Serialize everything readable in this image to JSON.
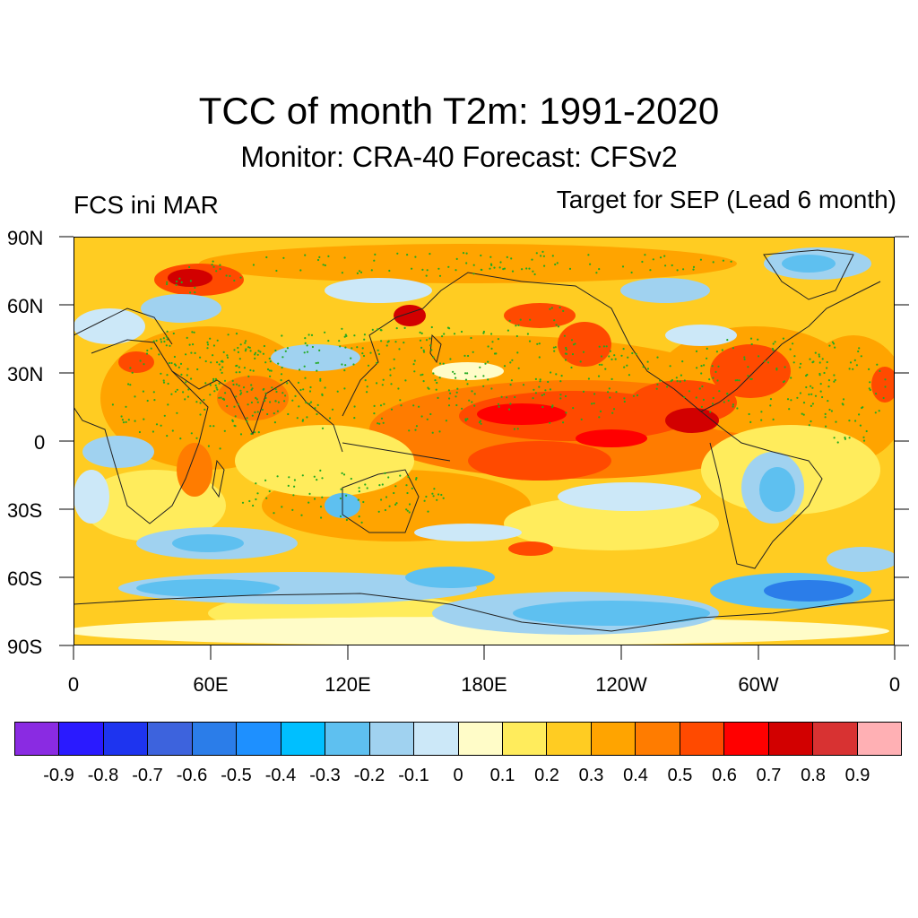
{
  "title": "TCC of month T2m: 1991-2020",
  "subtitle": "Monitor: CRA-40   Forecast: CFSv2",
  "left_label": "FCS ini MAR",
  "right_label": "Target for SEP (Lead 6 month)",
  "map": {
    "lat_labels": [
      "90N",
      "60N",
      "30N",
      "0",
      "30S",
      "60S",
      "90S"
    ],
    "lon_labels": [
      "0",
      "60E",
      "120E",
      "180E",
      "120W",
      "60W",
      "0"
    ],
    "significance_marker_color": "#22aa22"
  },
  "colorbar": {
    "colors": [
      "#8a2be2",
      "#2a1aff",
      "#1e34ef",
      "#3d63dd",
      "#2b7de9",
      "#1e90ff",
      "#00bfff",
      "#5ec0f0",
      "#a0d2f0",
      "#cce8f8",
      "#fffcc8",
      "#ffec5c",
      "#ffcc22",
      "#ffa400",
      "#ff7c00",
      "#ff4a00",
      "#ff0000",
      "#d20000",
      "#d83232",
      "#ffb0b4"
    ],
    "labels": [
      "-0.9",
      "-0.8",
      "-0.7",
      "-0.6",
      "-0.5",
      "-0.4",
      "-0.3",
      "-0.2",
      "-0.1",
      "0",
      "0.1",
      "0.2",
      "0.3",
      "0.4",
      "0.5",
      "0.6",
      "0.7",
      "0.8",
      "0.9"
    ]
  }
}
